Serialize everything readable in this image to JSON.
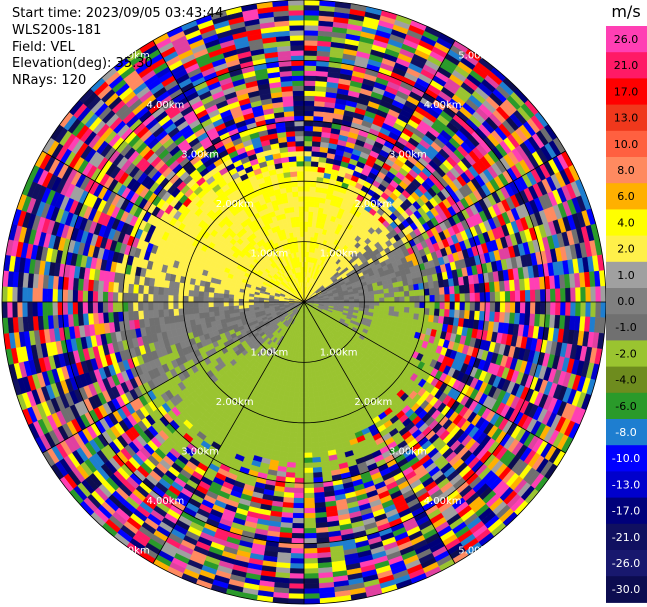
{
  "header": {
    "start_time": "Start time: 2023/09/05 03:43:44",
    "instrument": "WLS200s-181",
    "field": "Field: VEL",
    "elevation": "Elevation(deg): 35.30",
    "nrays": "NRays: 120"
  },
  "chart_data": {
    "type": "heatmap",
    "projection": "polar-ppi",
    "field": "VEL",
    "units": "m/s",
    "nrays": 120,
    "elevation_deg": 35.3,
    "range_rings_km": [
      1.0,
      2.0,
      3.0,
      4.0,
      5.0
    ],
    "range_ring_labels": [
      "1.00km",
      "2.00km",
      "3.00km",
      "4.00km",
      "5.00km"
    ],
    "max_range_km": 5.0,
    "colorbar": {
      "label": "m/s",
      "ticks": [
        "26.0",
        "21.0",
        "17.0",
        "13.0",
        "10.0",
        "8.0",
        "6.0",
        "4.0",
        "2.0",
        "1.0",
        "0.0",
        "-1.0",
        "-2.0",
        "-4.0",
        "-6.0",
        "-8.0",
        "-10.0",
        "-13.0",
        "-17.0",
        "-21.0",
        "-26.0",
        "-30.0"
      ],
      "colors": [
        "#ff3fb4",
        "#ff1a66",
        "#ff0000",
        "#f0381c",
        "#ff6040",
        "#ff8a60",
        "#ffb000",
        "#ffff00",
        "#fff04a",
        "#a0a0a0",
        "#808080",
        "#707070",
        "#9ac430",
        "#6e8c1e",
        "#2a9a2a",
        "#1e7ed0",
        "#0000ff",
        "#0000cc",
        "#00007a",
        "#101060",
        "#18186e",
        "#0c0c50"
      ],
      "range": [
        -30.0,
        30.0
      ]
    },
    "pattern": {
      "inner_negative_sector": "approaching (grey / green, -1 to -2 m/s) on east and south",
      "inner_positive_sector": "receding (yellow, 2 to 4 m/s) on west and north",
      "outer_noise_beyond_km": 3.0
    }
  }
}
